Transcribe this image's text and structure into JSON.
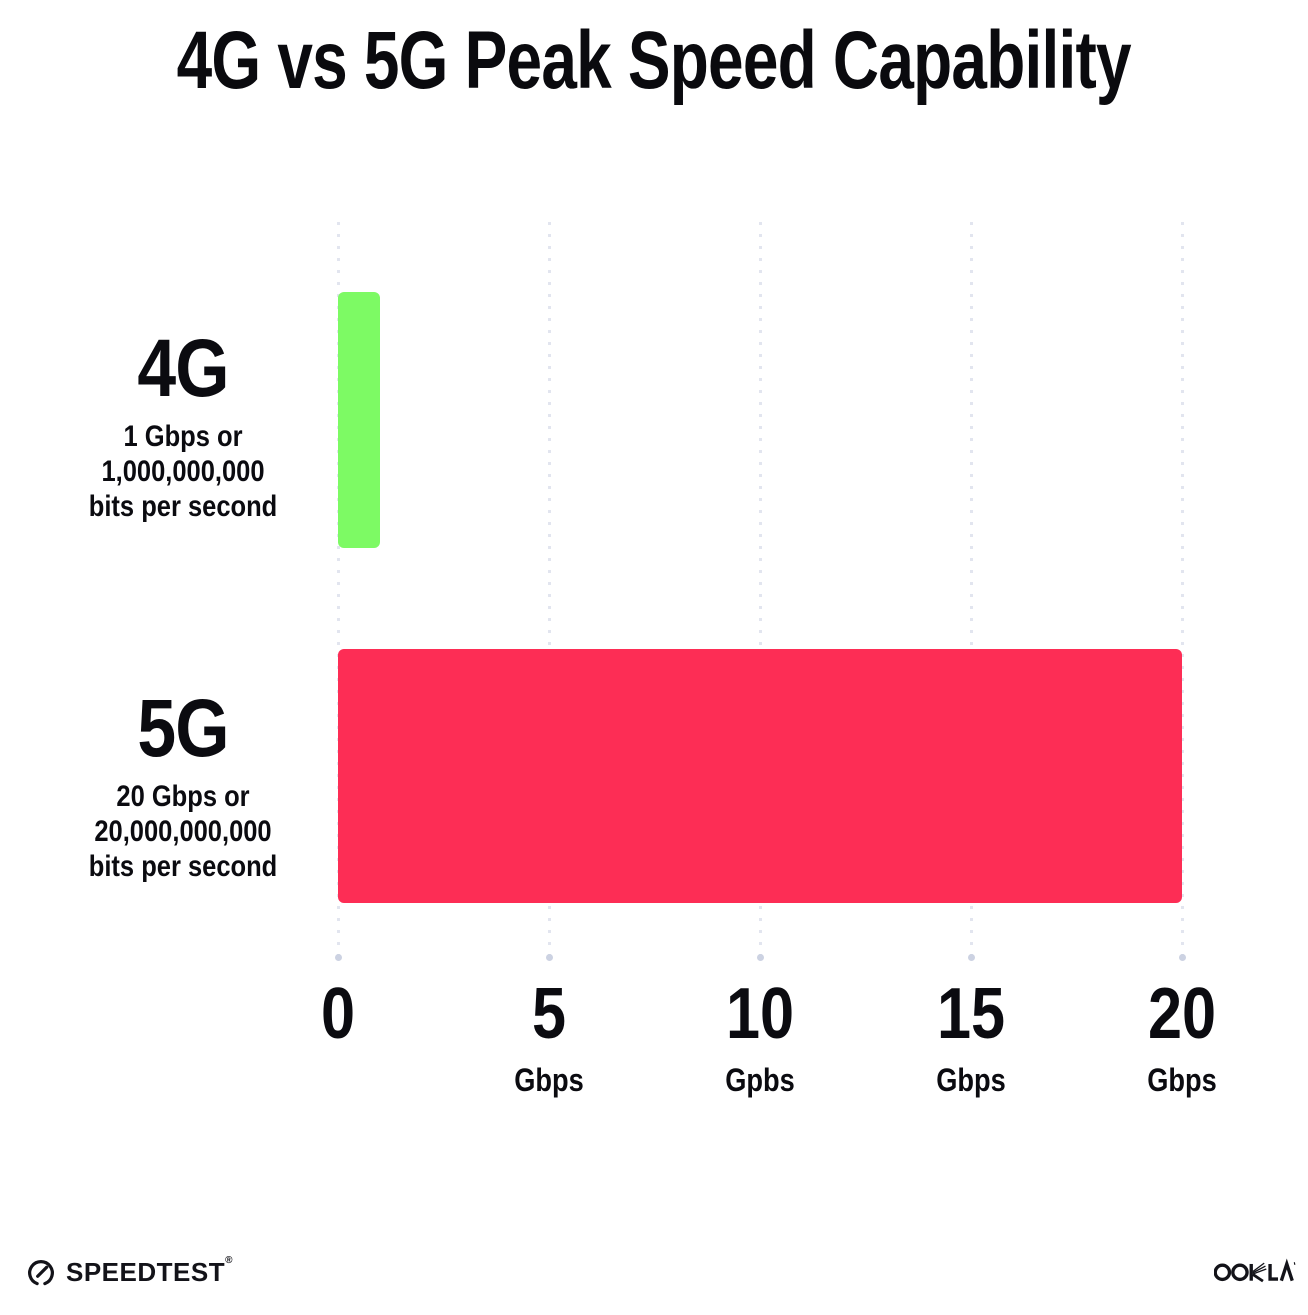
{
  "title": "4G vs 5G Peak Speed Capability",
  "chart_data": {
    "type": "bar",
    "orientation": "horizontal",
    "title": "4G vs 5G Peak Speed Capability",
    "categories": [
      "4G",
      "5G"
    ],
    "values": [
      1,
      20
    ],
    "xlabel": "Gbps",
    "xlim": [
      0,
      20
    ],
    "grid": {
      "orientation": "vertical",
      "style": "dotted",
      "color": "#E2E5EF"
    },
    "rows": [
      {
        "label": "4G",
        "value": 1,
        "color": "#7DFA64",
        "sublines": [
          "1 Gbps or",
          "1,000,000,000",
          "bits per second"
        ]
      },
      {
        "label": "5G",
        "value": 20,
        "color": "#FD2D55",
        "sublines": [
          "20 Gbps or",
          "20,000,000,000",
          "bits per second"
        ]
      }
    ],
    "x_ticks": [
      {
        "value": 0,
        "label": "0",
        "unit": ""
      },
      {
        "value": 5,
        "label": "5",
        "unit": "Gbps"
      },
      {
        "value": 10,
        "label": "10",
        "unit": "Gpbs"
      },
      {
        "value": 15,
        "label": "15",
        "unit": "Gbps"
      },
      {
        "value": 20,
        "label": "20",
        "unit": "Gbps"
      }
    ]
  },
  "footer": {
    "speedtest_label": "SPEEDTEST",
    "speedtest_trademark": "®",
    "ookla_label": "OOKLA"
  },
  "colors": {
    "background": "#FFFFFF",
    "text": "#0B0B10",
    "bar_4g": "#7DFA64",
    "bar_5g": "#FD2D55",
    "grid_dot": "#E2E5EF",
    "grid_end_dot": "#CCD2E2"
  }
}
